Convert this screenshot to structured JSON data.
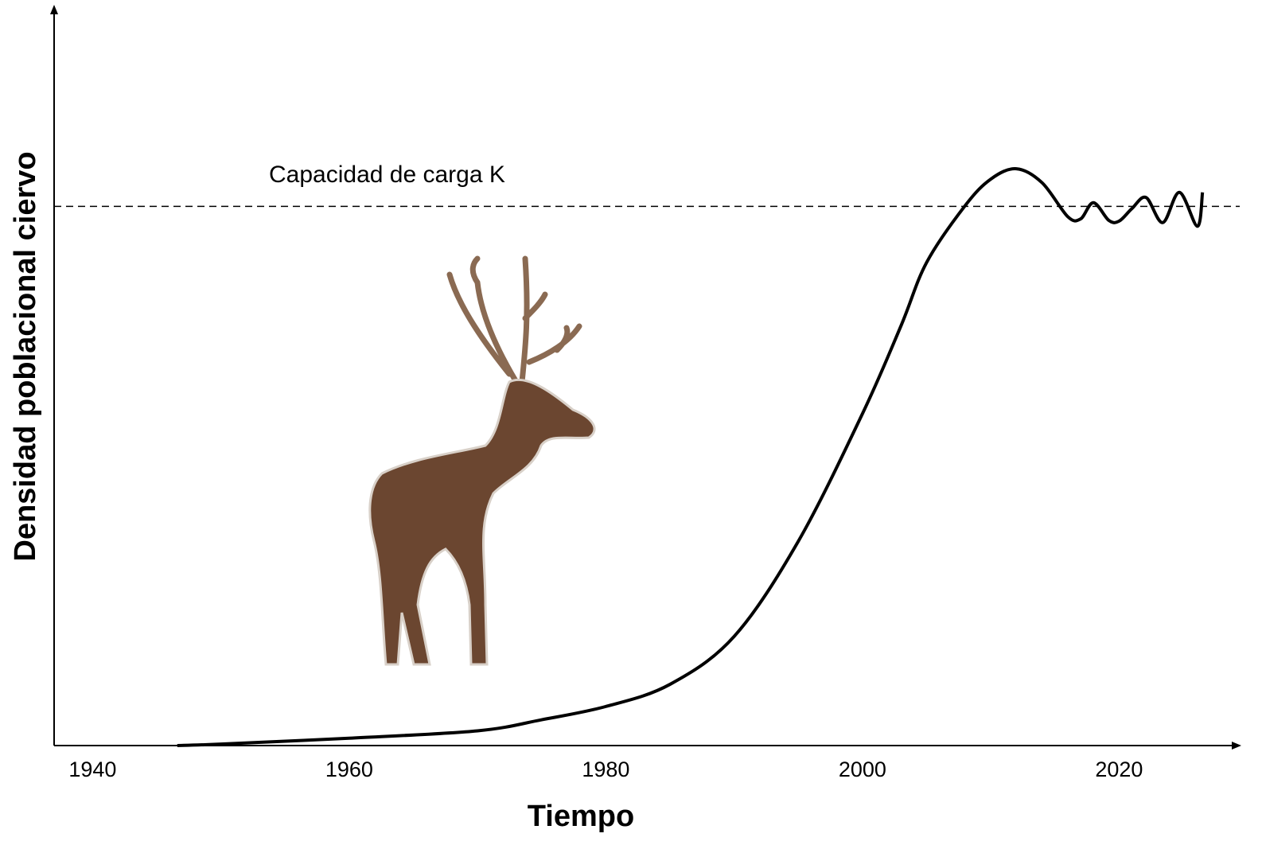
{
  "chart_data": {
    "type": "line",
    "xlabel": "Tiempo",
    "ylabel": "Densidad poblacional ciervo",
    "x": [
      1946.6,
      1950,
      1960,
      1970,
      1975,
      1980,
      1985,
      1990,
      1995,
      2000,
      2003,
      2005,
      2008,
      2010,
      2012,
      2014,
      2016,
      2017,
      2018,
      2019.2,
      2020,
      2021,
      2022.1,
      2023.4,
      2024.7,
      2026.1,
      2026.5
    ],
    "series": [
      {
        "color": "#000000",
        "values": [
          0,
          0.2,
          1,
          2,
          3.5,
          5.3,
          8.3,
          14.8,
          27.7,
          45,
          56.9,
          65.5,
          73.2,
          76.8,
          78.2,
          76.3,
          71.7,
          71.4,
          73.6,
          71.2,
          71.1,
          72.8,
          74.3,
          70.9,
          75,
          70.4,
          75
        ]
      }
    ],
    "carrying_capacity": {
      "label": "Capacidad de carga K",
      "value": 73.1
    },
    "xlim": [
      1937,
      2029.4
    ],
    "ylim": [
      0,
      100
    ],
    "xticks": [
      1940,
      1960,
      1980,
      2000,
      2020
    ]
  }
}
